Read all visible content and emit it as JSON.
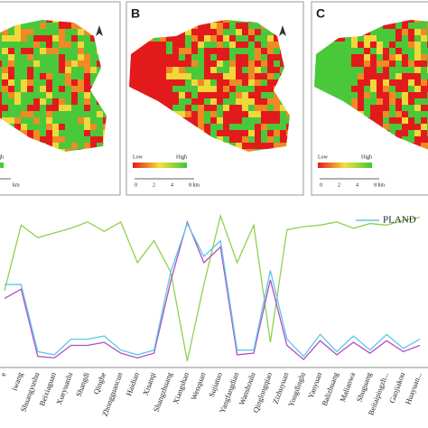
{
  "panels": [
    {
      "high": "High",
      "scale_unit": "km"
    },
    {
      "label": "B",
      "low": "Low",
      "high": "High",
      "scale": [
        "0",
        "2",
        "4",
        "8 km"
      ]
    },
    {
      "label": "C",
      "low": "Low",
      "high": "High",
      "scale": [
        "0",
        "2",
        "4",
        "8 km"
      ]
    }
  ],
  "chart_data": {
    "type": "line",
    "categories": [
      "e",
      "iwang",
      "Shuangyushu",
      "Beixiaguan",
      "Xueyuanlu",
      "Shangdi",
      "Qinghe",
      "Zhongguancun",
      "Haidian",
      "Xisanqi",
      "Shangzhuang",
      "Xiangshan",
      "Wenquan",
      "Sujiatuo",
      "Yangfangdian",
      "Wanshoulu",
      "Qinglongqiao",
      "Zizhuyuan",
      "Yongdinglu",
      "Yanyuan",
      "Balizhuang",
      "Malianwa",
      "Shuguang",
      "Beitaipingzh...",
      "Ganjiakou",
      "Huayuan..."
    ],
    "series": [
      {
        "name": "PLAND",
        "color": "#5ec8e6",
        "values": [
          52,
          52,
          9,
          7,
          17,
          17,
          19,
          10,
          7,
          10,
          60,
          91,
          70,
          80,
          10,
          10,
          61,
          17,
          6,
          20,
          9,
          19,
          10,
          20,
          11,
          17
        ]
      },
      {
        "color": "#b04ec4",
        "values": [
          43,
          49,
          6,
          5,
          13,
          13,
          15,
          8,
          5,
          8,
          54,
          92,
          66,
          76,
          7,
          8,
          55,
          13,
          4,
          16,
          7,
          15,
          8,
          16,
          9,
          13
        ]
      },
      {
        "color": "#8fd14f",
        "values": [
          48,
          90,
          82,
          85,
          88,
          92,
          86,
          92,
          66,
          80,
          60,
          3,
          52,
          96,
          66,
          90,
          15,
          87,
          89,
          90,
          92,
          88,
          91,
          90,
          93,
          95
        ]
      }
    ],
    "ylim": [
      0,
      100
    ],
    "legend": "top-right"
  }
}
